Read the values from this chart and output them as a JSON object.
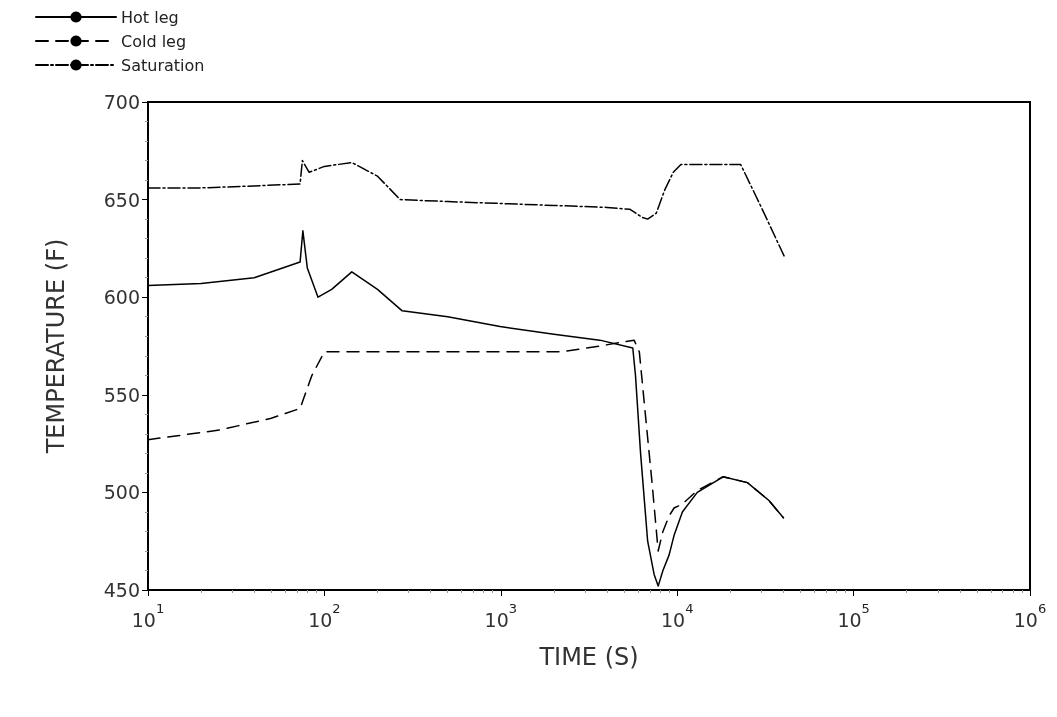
{
  "chart_data": {
    "type": "line",
    "xlabel": "TIME (S)",
    "ylabel": "TEMPERATURE (F)",
    "log": "x",
    "xlim": [
      10,
      1000000
    ],
    "xticks": [
      {
        "value": 10,
        "label": "10$^{1}$"
      },
      {
        "value": 100,
        "label": "10$^{2}$"
      },
      {
        "value": 1000,
        "label": "10$^{3}$"
      },
      {
        "value": 10000,
        "label": "10$^{4}$"
      },
      {
        "value": 100000,
        "label": "10$^{5}$"
      },
      {
        "value": 1000000,
        "label": "10$^{6}$"
      }
    ],
    "ylim": [
      450,
      700
    ],
    "yticks": [
      450,
      500,
      550,
      600,
      650,
      700
    ],
    "grid": false,
    "legend": "top left",
    "marker": "none",
    "series": [
      {
        "name": "Hot leg",
        "color": "#000000",
        "line_style": "solid",
        "x": [
          10,
          20,
          40,
          72.8,
          75.5,
          80,
          92,
          110,
          143,
          200,
          276,
          500,
          990,
          2000,
          3640,
          5600,
          5800,
          6200,
          6800,
          7400,
          7800,
          8300,
          9000,
          9600,
          10700,
          13000,
          18200,
          25000,
          33000,
          40000
        ],
        "values": [
          606,
          607,
          610,
          618,
          634,
          615,
          600,
          604,
          613,
          604,
          593,
          590,
          585,
          581,
          578,
          574,
          560,
          520,
          475,
          458,
          452,
          460,
          468,
          478,
          490,
          500,
          508,
          505,
          496,
          487
        ]
      },
      {
        "name": "Cold leg",
        "color": "#000000",
        "line_style": "dashed",
        "x": [
          10,
          25.6,
          50,
          72.8,
          85,
          100,
          200,
          500,
          1000,
          2200,
          3640,
          5700,
          6100,
          6600,
          7200,
          7800,
          8300,
          9000,
          9600,
          10700,
          13000,
          18200,
          25000,
          33000,
          40000
        ],
        "values": [
          527,
          532,
          538,
          543,
          560,
          572,
          572,
          572,
          572,
          572,
          575,
          578,
          572,
          540,
          505,
          470,
          480,
          488,
          492,
          494,
          501,
          508,
          505,
          496,
          487
        ]
      },
      {
        "name": "Saturation",
        "color": "#000000",
        "line_style": "dashdot",
        "x": [
          10,
          20,
          40,
          72.8,
          75,
          82,
          100,
          143,
          200,
          269,
          500,
          1000,
          2000,
          4000,
          5400,
          6300,
          6800,
          7600,
          8500,
          9500,
          10500,
          15000,
          22900,
          30000,
          40900
        ],
        "values": [
          656,
          656,
          657,
          658,
          670,
          664,
          667,
          669,
          662,
          650,
          649,
          648,
          647,
          646,
          645,
          641,
          640,
          643,
          655,
          664,
          668,
          668,
          668,
          646,
          620
        ]
      }
    ]
  }
}
